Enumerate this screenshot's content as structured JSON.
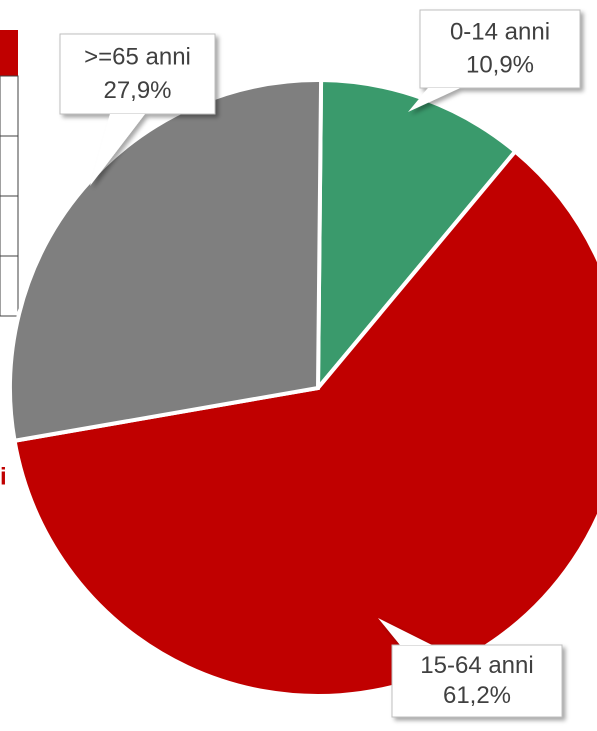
{
  "chart_data": {
    "type": "pie",
    "categories": [
      "0-14 anni",
      "15-64 anni",
      ">=65 anni"
    ],
    "values": [
      10.9,
      61.2,
      27.9
    ],
    "value_labels": [
      "10,9%",
      "61,2%",
      "27,9%"
    ],
    "colors": [
      "#3a9a6c",
      "#c00000",
      "#7f7f7f"
    ],
    "annotations": [
      "i"
    ]
  }
}
